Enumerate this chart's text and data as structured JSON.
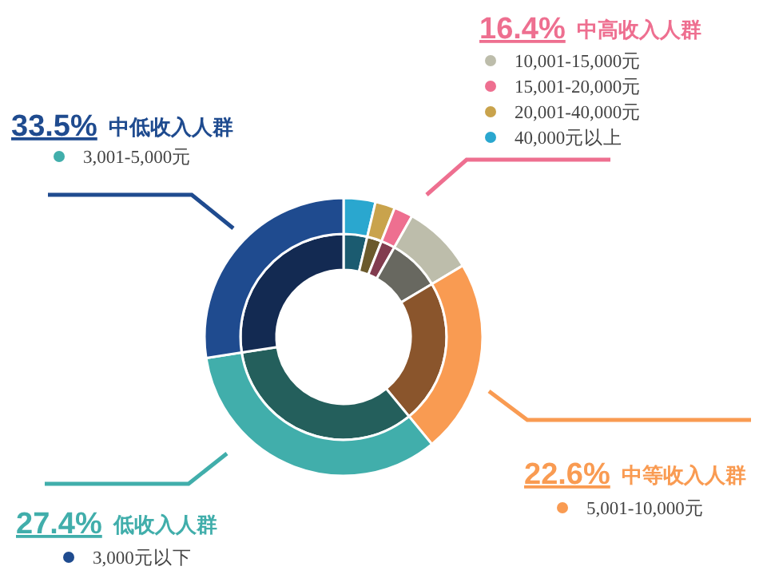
{
  "chart_data": {
    "type": "donut",
    "categories": [
      "40,000元以上",
      "20,001-40,000元",
      "15,001-20,000元",
      "10,001-15,000元",
      "5,001-10,000元",
      "3,001-5,000元",
      "3,000元以下"
    ],
    "series": [
      {
        "values": [
          3.7,
          2.3,
          2.2,
          8.2,
          22.6,
          33.5,
          27.4
        ],
        "colors": [
          "#1b5b70",
          "#6b5a2c",
          "#823c4f",
          "#686860",
          "#8a552c",
          "#245f5c",
          "#132a52"
        ]
      },
      {
        "values": [
          3.7,
          2.3,
          2.2,
          8.2,
          22.6,
          33.5,
          27.4
        ],
        "colors": [
          "#2aa7cf",
          "#c9a34c",
          "#ee6f90",
          "#bdbdab",
          "#f99b52",
          "#41aeab",
          "#1f4b8f"
        ]
      }
    ],
    "annotations": [
      "16.4% 中高收入人群",
      "33.5% 中低收入人群",
      "22.6% 中等收入人群",
      "27.4% 低收入人群"
    ],
    "legend": "right"
  }
}
